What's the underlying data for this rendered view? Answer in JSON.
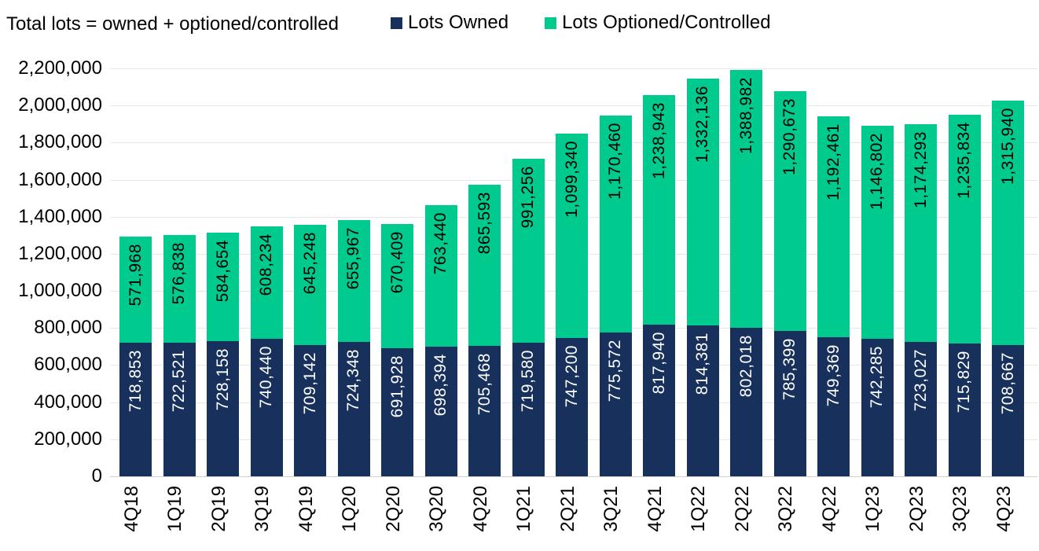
{
  "title": "Total lots = owned + optioned/controlled",
  "legend": {
    "items": [
      {
        "label": "Lots Owned",
        "color": "#17305c"
      },
      {
        "label": "Lots Optioned/Controlled",
        "color": "#00ca8e"
      }
    ]
  },
  "chart_data": {
    "type": "bar",
    "stacked": true,
    "title": "Total lots = owned + optioned/controlled",
    "xlabel": "",
    "ylabel": "",
    "ylim": [
      0,
      2200000
    ],
    "ytick_step": 200000,
    "grid": true,
    "legend_position": "top",
    "categories": [
      "4Q18",
      "1Q19",
      "2Q19",
      "3Q19",
      "4Q19",
      "1Q20",
      "2Q20",
      "3Q20",
      "4Q20",
      "1Q21",
      "2Q21",
      "3Q21",
      "4Q21",
      "1Q22",
      "2Q22",
      "3Q22",
      "4Q22",
      "1Q23",
      "2Q23",
      "3Q23",
      "4Q23"
    ],
    "series": [
      {
        "name": "Lots Owned",
        "color": "#17305c",
        "label_color": "#ffffff",
        "values": [
          718853,
          722521,
          728158,
          740440,
          709142,
          724348,
          691928,
          698394,
          705468,
          719580,
          747200,
          775572,
          817940,
          814381,
          802018,
          785399,
          749369,
          742285,
          723027,
          715829,
          708667
        ]
      },
      {
        "name": "Lots Optioned/Controlled",
        "color": "#00ca8e",
        "label_color": "#000000",
        "values": [
          571968,
          576838,
          584654,
          608234,
          645248,
          655967,
          670409,
          763440,
          865593,
          991256,
          1099340,
          1170460,
          1238943,
          1332136,
          1388982,
          1290673,
          1192461,
          1146802,
          1174293,
          1235834,
          1315940
        ]
      }
    ]
  }
}
